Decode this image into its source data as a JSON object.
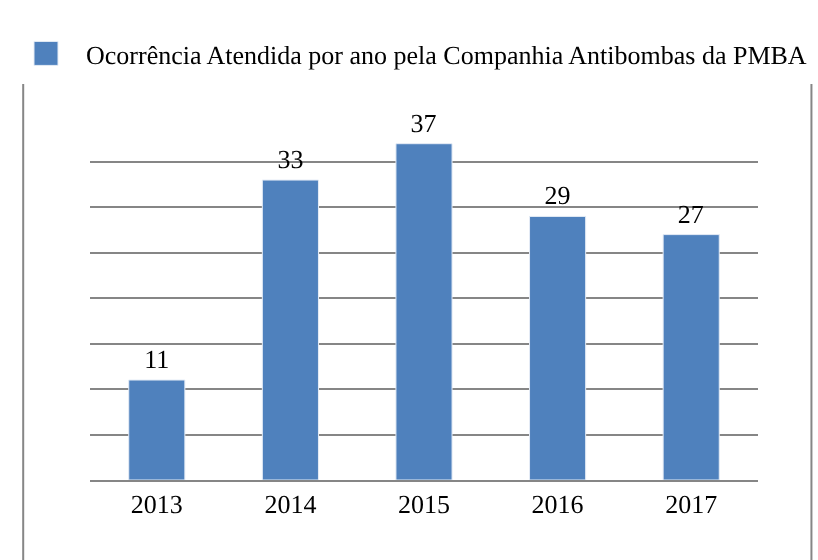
{
  "chart_data": {
    "type": "bar",
    "categories": [
      "2013",
      "2014",
      "2015",
      "2016",
      "2017"
    ],
    "series": [
      {
        "name": "Ocorrência Atendida por ano pela Companhia Antibombas da PMBA",
        "color": "#4f81bd",
        "values": [
          11,
          33,
          37,
          29,
          27
        ]
      }
    ],
    "yticks": [
      {
        "value": 0,
        "label": null
      },
      {
        "value": 5,
        "label": null
      },
      {
        "value": 10,
        "label": null
      },
      {
        "value": 15,
        "label": null
      },
      {
        "value": 20,
        "label": null
      },
      {
        "value": 25,
        "label": null
      },
      {
        "value": 30,
        "label": null
      },
      {
        "value": 35,
        "label": null
      }
    ],
    "tick_labels": "x",
    "grid": "y",
    "legend": "top",
    "data_labels": true
  }
}
